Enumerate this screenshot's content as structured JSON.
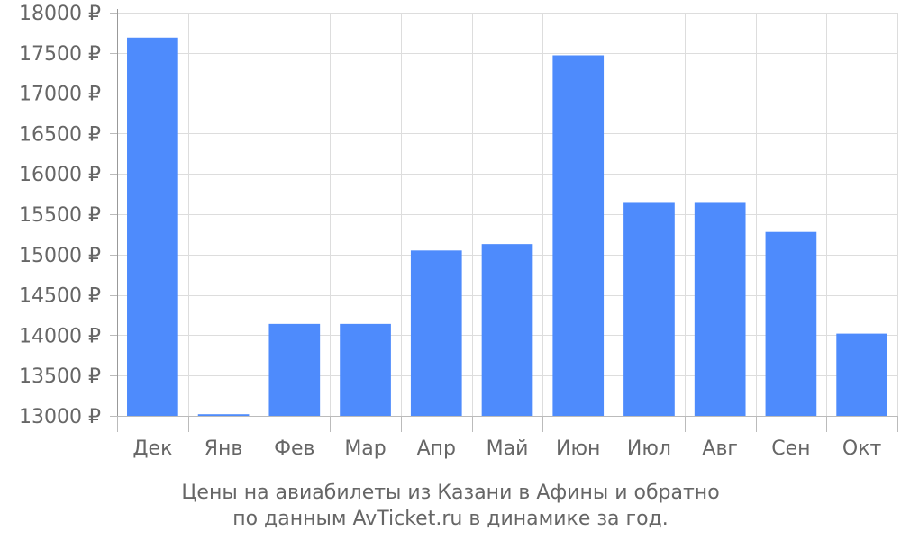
{
  "chart_data": {
    "type": "bar",
    "categories": [
      "Дек",
      "Янв",
      "Фев",
      "Мар",
      "Апр",
      "Май",
      "Июн",
      "Июл",
      "Авг",
      "Сен",
      "Окт"
    ],
    "values": [
      17690,
      13020,
      14140,
      14140,
      15050,
      15130,
      17470,
      15640,
      15640,
      15280,
      14020
    ],
    "ylim": [
      13000,
      18000
    ],
    "yticks": [
      13000,
      13500,
      14000,
      14500,
      15000,
      15500,
      16000,
      16500,
      17000,
      17500,
      18000
    ],
    "ytick_suffix": " ₽",
    "grid": true,
    "bar_color": "#4e8bfc",
    "caption_line1": "Цены на авиабилеты из Казани в Афины и обратно",
    "caption_line2": "по данным AvTicket.ru в динамике за год."
  }
}
